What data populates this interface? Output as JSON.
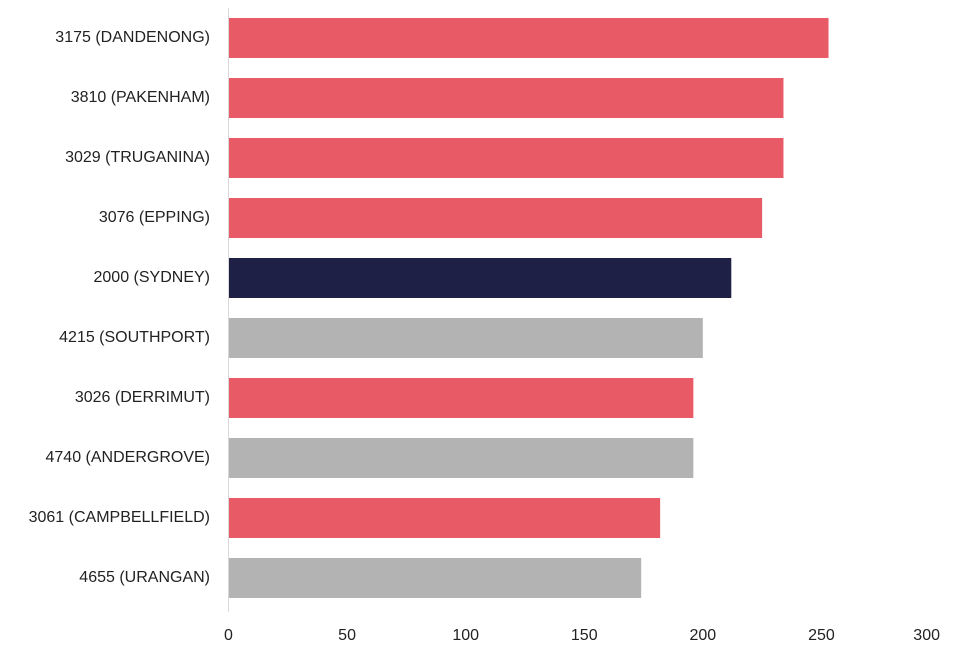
{
  "chart_data": {
    "type": "bar",
    "orientation": "horizontal",
    "categories": [
      "3175 (DANDENONG)",
      "3810 (PAKENHAM)",
      "3029 (TRUGANINA)",
      "3076 (EPPING)",
      "2000 (SYDNEY)",
      "4215 (SOUTHPORT)",
      "3026 (DERRIMUT)",
      "4740 (ANDERGROVE)",
      "3061 (CAMPBELLFIELD)",
      "4655 (URANGAN)"
    ],
    "values": [
      253,
      234,
      234,
      225,
      212,
      200,
      196,
      196,
      182,
      174
    ],
    "bar_colors": [
      "#e85a66",
      "#e85a66",
      "#e85a66",
      "#e85a66",
      "#1f2045",
      "#b3b3b3",
      "#e85a66",
      "#b3b3b3",
      "#e85a66",
      "#b3b3b3"
    ],
    "xlim": [
      0,
      300
    ],
    "xticks": [
      0,
      50,
      100,
      150,
      200,
      250,
      300
    ],
    "title": "",
    "xlabel": "",
    "ylabel": "",
    "grid": false,
    "legend": "none"
  }
}
